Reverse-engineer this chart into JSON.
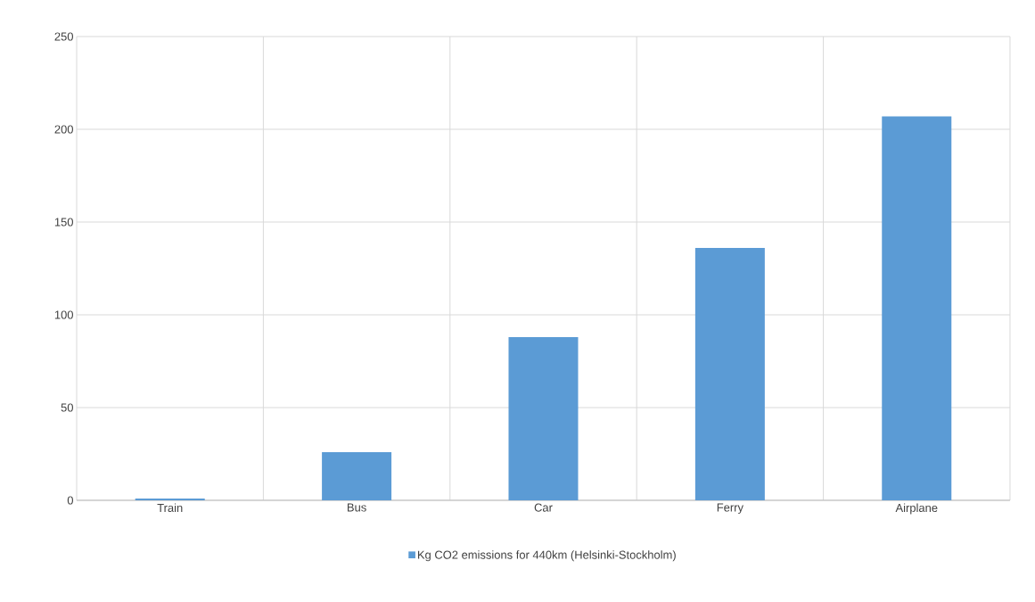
{
  "chart_data": {
    "type": "bar",
    "categories": [
      "Train",
      "Bus",
      "Car",
      "Ferry",
      "Airplane"
    ],
    "series": [
      {
        "name": "Kg CO2 emissions for 440km (Helsinki-Stockholm)",
        "color": "#5b9bd5",
        "values": [
          1,
          26,
          88,
          136,
          207
        ]
      }
    ],
    "ylim": [
      0,
      250
    ],
    "yticks": [
      0,
      50,
      100,
      150,
      200,
      250
    ],
    "grid": true,
    "legend": "bottom"
  }
}
